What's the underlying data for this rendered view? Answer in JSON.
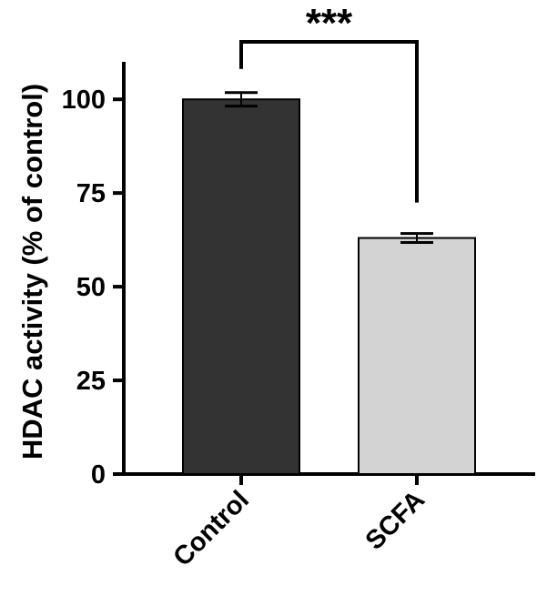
{
  "chart_data": {
    "type": "bar",
    "categories": [
      "Control",
      "SCFA"
    ],
    "values": [
      100,
      63
    ],
    "errors": [
      1.8,
      1.2
    ],
    "bar_colors": [
      "#333333",
      "#d3d3d3"
    ],
    "ylabel": "HDAC activity (% of control)",
    "xlabel": "",
    "ylim": [
      0,
      110
    ],
    "yticks": [
      0,
      25,
      50,
      75,
      100
    ],
    "ytick_labels": [
      "0",
      "25",
      "50",
      "75",
      "100"
    ],
    "grid": false,
    "significance": {
      "between": [
        "Control",
        "SCFA"
      ],
      "label": "***"
    }
  }
}
